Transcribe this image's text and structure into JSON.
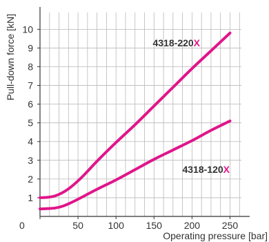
{
  "chart_data": {
    "type": "line",
    "xlabel": "Operating pressure [bar]",
    "ylabel": "Pull-down force [kN]",
    "xlim": [
      0,
      265
    ],
    "ylim": [
      0,
      10.9
    ],
    "xticks": [
      0,
      50,
      100,
      150,
      200,
      250
    ],
    "yticks": [
      1,
      2,
      3,
      4,
      5,
      6,
      7,
      8,
      9,
      10
    ],
    "x_grid_step": 12.5,
    "grid": true,
    "series_color": "#e0158a",
    "text_color": "#333333",
    "grid_color": "#b8b8b8",
    "series": [
      {
        "name": "4318-220",
        "suffix": "X",
        "x": [
          0,
          10,
          20,
          30,
          40,
          50,
          60,
          75,
          100,
          125,
          150,
          175,
          200,
          225,
          250
        ],
        "y": [
          1.0,
          1.02,
          1.1,
          1.28,
          1.55,
          1.9,
          2.3,
          2.95,
          3.95,
          4.9,
          5.9,
          6.9,
          7.9,
          8.85,
          9.8
        ]
      },
      {
        "name": "4318-120",
        "suffix": "X",
        "x": [
          0,
          10,
          20,
          30,
          40,
          50,
          75,
          100,
          125,
          150,
          175,
          200,
          225,
          250
        ],
        "y": [
          0.4,
          0.42,
          0.45,
          0.55,
          0.72,
          0.92,
          1.45,
          1.95,
          2.5,
          3.05,
          3.55,
          4.05,
          4.6,
          5.1
        ]
      }
    ]
  }
}
